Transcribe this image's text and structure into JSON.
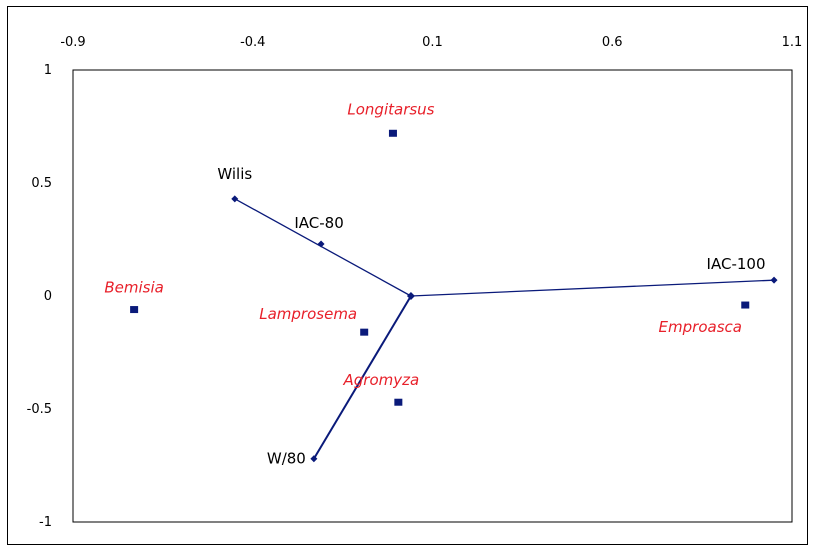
{
  "chart_data": {
    "type": "scatter",
    "title": "",
    "xlabel": "",
    "ylabel": "",
    "xlim": [
      -0.9,
      1.1
    ],
    "ylim": [
      -1,
      1
    ],
    "x_ticks": [
      "-0.9",
      "-0.4",
      "0.1",
      "0.6",
      "1.1"
    ],
    "y_ticks": [
      "1",
      "0.5",
      "0",
      "-0.5",
      "-1"
    ],
    "x_tick_values": [
      -0.9,
      -0.4,
      0.1,
      0.6,
      1.1
    ],
    "y_tick_values": [
      1,
      0.5,
      0,
      -0.5,
      -1
    ],
    "x_axis_position": "top",
    "grid": false,
    "origin": {
      "x": 0.04,
      "y": 0.0
    },
    "varieties": [
      {
        "label": "Wilis",
        "x": -0.45,
        "y": 0.43
      },
      {
        "label": "IAC-80",
        "x": -0.21,
        "y": 0.23
      },
      {
        "label": "IAC-100",
        "x": 1.05,
        "y": 0.07
      },
      {
        "label": "W/80",
        "x": -0.23,
        "y": -0.72
      }
    ],
    "vectors": [
      {
        "from": "origin",
        "to": "Wilis"
      },
      {
        "from": "origin",
        "to": "IAC-100"
      },
      {
        "from": "origin",
        "to": "W/80"
      }
    ],
    "species": [
      {
        "label": "Longitarsus",
        "x": -0.01,
        "y": 0.72
      },
      {
        "label": "Bemisia",
        "x": -0.73,
        "y": -0.06
      },
      {
        "label": "Lamprosema",
        "x": -0.09,
        "y": -0.16
      },
      {
        "label": "Agromyza",
        "x": 0.005,
        "y": -0.47
      },
      {
        "label": "Emproasca",
        "x": 0.97,
        "y": -0.04
      }
    ],
    "colors": {
      "series": "#0a1a7a",
      "species_label": "#e8202a",
      "variety_label": "#000000"
    }
  }
}
